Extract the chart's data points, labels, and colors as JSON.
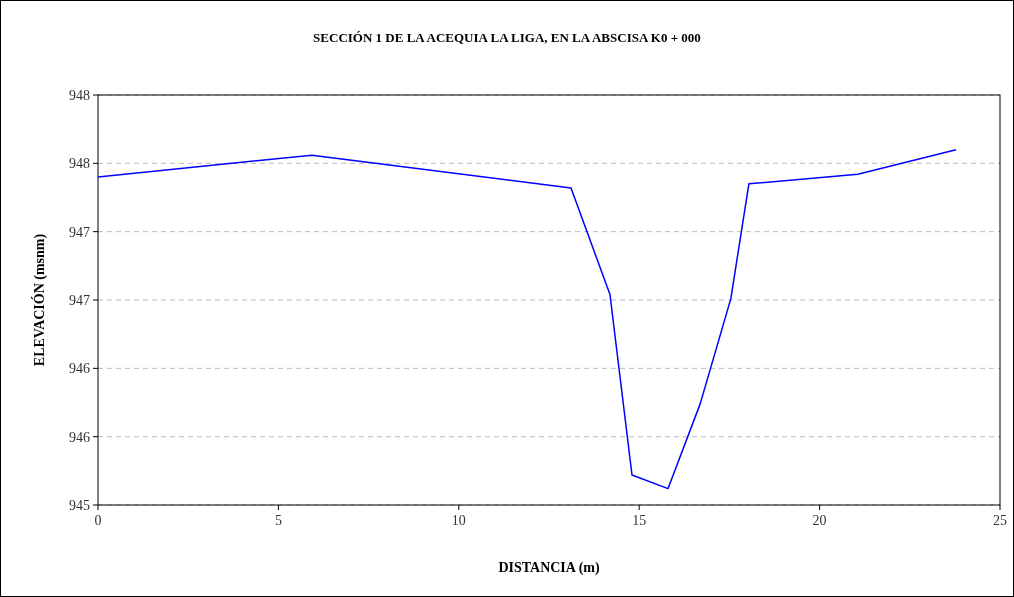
{
  "chart_data": {
    "type": "line",
    "title": "SECCIÓN 1 DE LA ACEQUIA LA LIGA, EN LA ABSCISA K0 + 000",
    "xlabel": "DISTANCIA (m)",
    "ylabel": "ELEVACIÓN (msnm)",
    "x": [
      0,
      5.93,
      13.11,
      14.19,
      14.8,
      15.8,
      16.69,
      17.54,
      18.04,
      21.06,
      23.78
    ],
    "series": [
      {
        "color": "#0000ff",
        "values": [
          947.4,
          947.56,
          947.32,
          946.54,
          945.22,
          945.12,
          945.74,
          946.51,
          947.35,
          947.42,
          947.6
        ]
      }
    ],
    "xlim": [
      0,
      25
    ],
    "xticks": [
      0,
      5,
      10,
      15,
      20,
      25
    ],
    "ylim": [
      945,
      948
    ],
    "yticks": [
      945,
      {
        "value": 945.5,
        "label": "946"
      },
      946,
      {
        "value": 946.5,
        "label": "947"
      },
      947,
      {
        "value": 947.5,
        "label": "948"
      },
      948
    ],
    "grid": "y",
    "marker": "none",
    "line_style": "solid"
  }
}
